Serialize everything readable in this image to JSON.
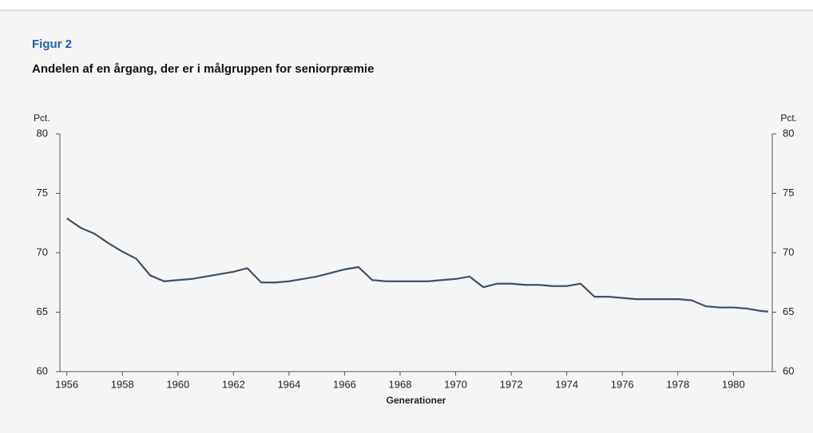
{
  "chart_data": {
    "type": "line",
    "figure_label": "Figur 2",
    "title": "Andelen af en årgang, der er i målgruppen for seniorpræmie",
    "y_label": "Pct.",
    "y2_label": "Pct.",
    "x_label": "Generationer",
    "x": [
      1956,
      1956.5,
      1957,
      1957.5,
      1958,
      1958.5,
      1959,
      1959.5,
      1960,
      1960.5,
      1961,
      1961.5,
      1962,
      1962.5,
      1963,
      1963.5,
      1964,
      1964.5,
      1965,
      1965.5,
      1966,
      1966.5,
      1967,
      1967.5,
      1968,
      1968.5,
      1969,
      1969.5,
      1970,
      1970.5,
      1971,
      1971.5,
      1972,
      1972.5,
      1973,
      1973.5,
      1974,
      1974.5,
      1975,
      1975.5,
      1976,
      1976.5,
      1977,
      1977.5,
      1978,
      1978.5,
      1979,
      1979.5,
      1980,
      1980.5,
      1981,
      1981.25
    ],
    "series": [
      {
        "color": "#3d5166",
        "values": [
          72.9,
          72.1,
          71.6,
          70.8,
          70.1,
          69.5,
          68.1,
          67.6,
          67.7,
          67.8,
          68.0,
          68.2,
          68.4,
          68.7,
          67.5,
          67.5,
          67.6,
          67.8,
          68.0,
          68.3,
          68.6,
          68.8,
          67.7,
          67.6,
          67.6,
          67.6,
          67.6,
          67.7,
          67.8,
          68.0,
          67.1,
          67.4,
          67.4,
          67.3,
          67.3,
          67.2,
          67.2,
          67.4,
          66.3,
          66.3,
          66.2,
          66.1,
          66.1,
          66.1,
          66.1,
          66.0,
          65.5,
          65.4,
          65.4,
          65.3,
          65.1,
          65.05
        ]
      }
    ],
    "xlim": [
      1955.75,
      1981.4
    ],
    "xticks": [
      1956,
      1958,
      1960,
      1962,
      1964,
      1966,
      1968,
      1970,
      1972,
      1974,
      1976,
      1978,
      1980
    ],
    "ylim": [
      60,
      80
    ],
    "yticks": [
      60,
      65,
      70,
      75,
      80
    ],
    "y2lim": [
      60,
      80
    ],
    "y2ticks": [
      60,
      65,
      70,
      75,
      80
    ],
    "grid": false
  }
}
